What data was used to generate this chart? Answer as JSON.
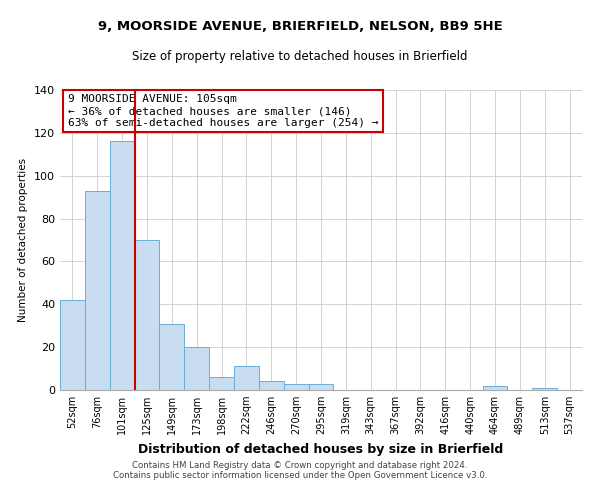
{
  "title": "9, MOORSIDE AVENUE, BRIERFIELD, NELSON, BB9 5HE",
  "subtitle": "Size of property relative to detached houses in Brierfield",
  "xlabel": "Distribution of detached houses by size in Brierfield",
  "ylabel": "Number of detached properties",
  "bar_labels": [
    "52sqm",
    "76sqm",
    "101sqm",
    "125sqm",
    "149sqm",
    "173sqm",
    "198sqm",
    "222sqm",
    "246sqm",
    "270sqm",
    "295sqm",
    "319sqm",
    "343sqm",
    "367sqm",
    "392sqm",
    "416sqm",
    "440sqm",
    "464sqm",
    "489sqm",
    "513sqm",
    "537sqm"
  ],
  "bar_values": [
    42,
    93,
    116,
    70,
    31,
    20,
    6,
    11,
    4,
    3,
    3,
    0,
    0,
    0,
    0,
    0,
    0,
    2,
    0,
    1,
    0
  ],
  "bar_color": "#c8ddf0",
  "bar_edge_color": "#6aaed6",
  "vline_color": "#cc0000",
  "ylim": [
    0,
    140
  ],
  "yticks": [
    0,
    20,
    40,
    60,
    80,
    100,
    120,
    140
  ],
  "annotation_title": "9 MOORSIDE AVENUE: 105sqm",
  "annotation_line1": "← 36% of detached houses are smaller (146)",
  "annotation_line2": "63% of semi-detached houses are larger (254) →",
  "footer_line1": "Contains HM Land Registry data © Crown copyright and database right 2024.",
  "footer_line2": "Contains public sector information licensed under the Open Government Licence v3.0.",
  "background_color": "#ffffff",
  "grid_color": "#cccccc"
}
